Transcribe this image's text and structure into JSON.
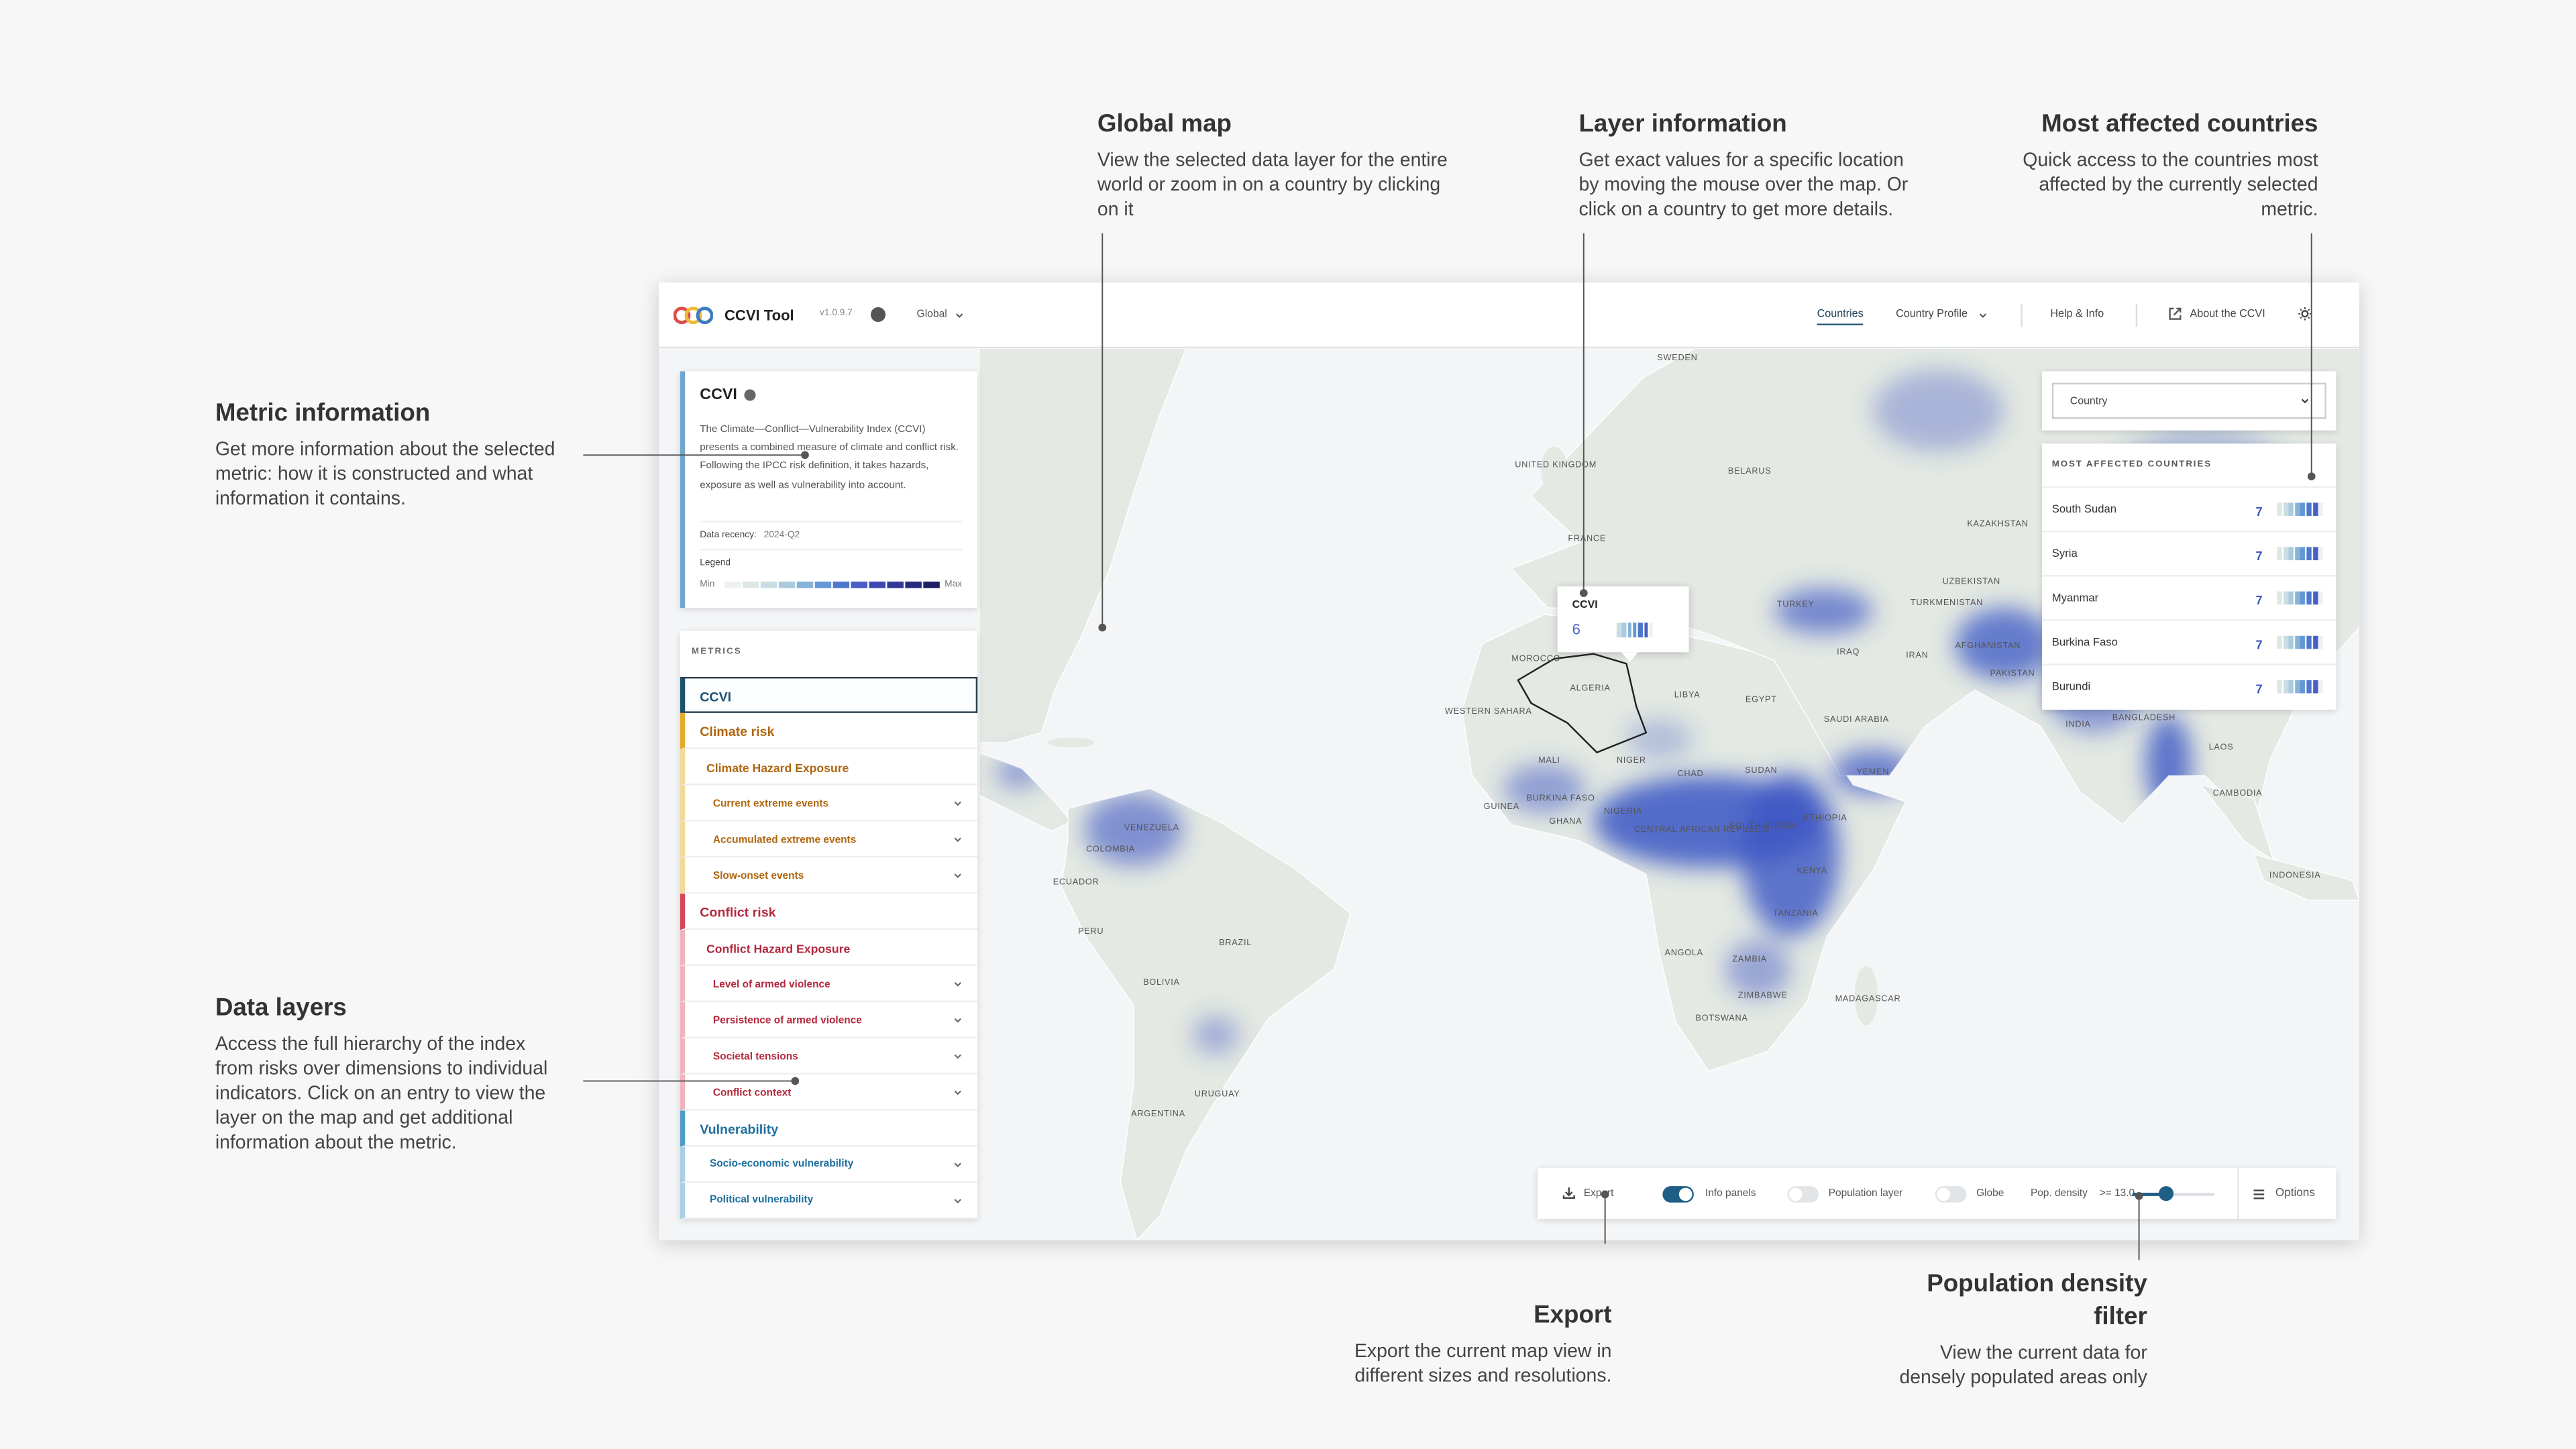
{
  "annotations": [
    {
      "title": "Metric information",
      "text": "Get more information about the selected metric: how it is constructed and what information it contains."
    },
    {
      "title": "Data layers",
      "text": "Access the full hierarchy of the index from risks over dimensions to individual indicators. Click on an entry to view the layer on the map and get additional information about the metric."
    },
    {
      "title": "Global map",
      "text": "View the selected data layer for the entire world or zoom in on a country by clicking on it"
    },
    {
      "title": "Layer information",
      "text": "Get exact values for a specific location by moving the mouse over the map. Or click on a country to get more details."
    },
    {
      "title": "Most affected countries",
      "text": "Quick access to the countries most affected by the currently selected metric."
    },
    {
      "title": "Export",
      "text": "Export the current map view in different sizes and resolutions."
    },
    {
      "title": "Population density filter",
      "text": "View the current data for densely populated areas only"
    }
  ],
  "app": {
    "header": {
      "name": "CCVI Tool",
      "version": "v1.0.9.7",
      "scope": "Global",
      "nav": [
        "Countries",
        "Country Profile",
        "Help & Info",
        "About the CCVI"
      ]
    },
    "metric_panel": {
      "title": "CCVI",
      "description": "The Climate—Conflict—Vulnerability Index (CCVI) presents a combined measure of climate and conflict risk. Following the IPCC risk definition, it takes hazards, exposure as well as vulnerability into account.",
      "recency_label": "Data recency:",
      "recency_value": "2024-Q2",
      "legend_title": "Legend",
      "legend_min": "Min",
      "legend_max": "Max"
    },
    "metrics": {
      "title": "METRICS",
      "items": [
        "CCVI",
        "Climate risk",
        "Climate Hazard Exposure",
        "Current extreme events",
        "Accumulated extreme events",
        "Slow-onset events",
        "Conflict risk",
        "Conflict Hazard Exposure",
        "Level of armed violence",
        "Persistence of armed violence",
        "Societal tensions",
        "Conflict context",
        "Vulnerability",
        "Socio-economic vulnerability",
        "Political vulnerability"
      ]
    },
    "tooltip": {
      "title": "CCVI",
      "value": 6
    },
    "country_select": "Country",
    "most_affected": {
      "title": "MOST AFFECTED COUNTRIES",
      "rows": [
        {
          "name": "South Sudan",
          "value": 7
        },
        {
          "name": "Syria",
          "value": 7
        },
        {
          "name": "Myanmar",
          "value": 7
        },
        {
          "name": "Burkina Faso",
          "value": 7
        },
        {
          "name": "Burundi",
          "value": 7
        }
      ]
    },
    "toolbar": {
      "export": "Export",
      "info_panels": "Info panels",
      "population_layer": "Population layer",
      "globe": "Globe",
      "pop_density": "Pop. density",
      "pop_density_value": ">= 13.0",
      "options": "Options"
    }
  },
  "map_labels": [
    "SWEDEN",
    "UNITED KINGDOM",
    "BELARUS",
    "FRANCE",
    "KAZAKHSTAN",
    "UZBEKISTAN",
    "TURKMENISTAN",
    "TURKEY",
    "IRAQ",
    "IRAN",
    "AFGHANISTAN",
    "PAKISTAN",
    "SAUDI ARABIA",
    "INDIA",
    "BANGLADESH",
    "LAOS",
    "CAMBODIA",
    "INDONESIA",
    "MOROCCO",
    "ALGERIA",
    "LIBYA",
    "EGYPT",
    "WESTERN SAHARA",
    "MALI",
    "NIGER",
    "CHAD",
    "SUDAN",
    "YEMEN",
    "BURKINA FASO",
    "GUINEA",
    "GHANA",
    "NIGERIA",
    "CENTRAL AFRICAN REPUBLIC",
    "SOUTH SUDAN",
    "ETHIOPIA",
    "KENYA",
    "TANZANIA",
    "ANGOLA",
    "ZAMBIA",
    "ZIMBABWE",
    "BOTSWANA",
    "MADAGASCAR",
    "VENEZUELA",
    "COLOMBIA",
    "ECUADOR",
    "PERU",
    "BRAZIL",
    "BOLIVIA",
    "URUGUAY",
    "ARGENTINA"
  ]
}
